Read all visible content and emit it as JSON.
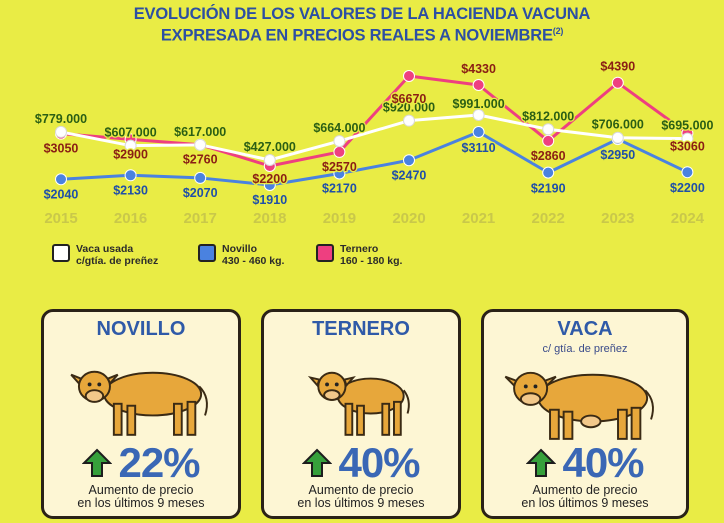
{
  "title_line1": "EVOLUCIÓN DE LOS VALORES DE LA HACIENDA VACUNA",
  "title_line2": "EXPRESADA EN PRECIOS REALES A NOVIEMBRE",
  "title_note": "(2)",
  "colors": {
    "background": "#e9ec45",
    "vaca": "#ffffff",
    "novillo": "#4a82e0",
    "ternero": "#ee3f80",
    "year_labels": "#c9c84a",
    "card_title": "#2f5aa8",
    "arrow": "#36a03b"
  },
  "chart_data": {
    "type": "line",
    "x": [
      "2015",
      "2016",
      "2017",
      "2018",
      "2019",
      "2020",
      "2021",
      "2022",
      "2023",
      "2024"
    ],
    "grid": false,
    "legend_position": "bottom-left",
    "series": [
      {
        "name": "Vaca usada c/gtía. de preñez",
        "values": [
          779000,
          607000,
          617000,
          427000,
          664000,
          920000,
          991000,
          812000,
          706000,
          695000
        ],
        "labels": [
          "$779.000",
          "$607.000",
          "$617.000",
          "$427.000",
          "$664.000",
          "$920.000",
          "$991.000",
          "$812.000",
          "$706.000",
          "$695.000"
        ]
      },
      {
        "name": "Novillo 430 - 460 kg.",
        "values": [
          2040,
          2130,
          2070,
          1910,
          2170,
          2470,
          3110,
          2190,
          2950,
          2200
        ],
        "labels": [
          "$2040",
          "$2130",
          "$2070",
          "$1910",
          "$2170",
          "$2470",
          "$3110",
          "$2190",
          "$2950",
          "$2200"
        ]
      },
      {
        "name": "Ternero 160 - 180 kg.",
        "values": [
          3050,
          2900,
          2760,
          2200,
          2570,
          6670,
          4330,
          2860,
          4390,
          3060
        ],
        "labels": [
          "$3050",
          "$2900",
          "$2760",
          "$2200",
          "$2570",
          "$6670",
          "$4330",
          "$2860",
          "$4390",
          "$3060"
        ]
      }
    ]
  },
  "legend": [
    {
      "line1": "Vaca usada",
      "line2": "c/gtía. de preñez"
    },
    {
      "line1": "Novillo",
      "line2": "430 - 460 kg."
    },
    {
      "line1": "Ternero",
      "line2": "160 - 180 kg."
    }
  ],
  "cards": [
    {
      "title": "NOVILLO",
      "subtitle": "",
      "percent": "22%",
      "note_line1": "Aumento de precio",
      "note_line2": "en los últimos 9 meses"
    },
    {
      "title": "TERNERO",
      "subtitle": "",
      "percent": "40%",
      "note_line1": "Aumento de precio",
      "note_line2": "en los últimos 9 meses"
    },
    {
      "title": "VACA",
      "subtitle": "c/ gtía. de preñez",
      "percent": "40%",
      "note_line1": "Aumento de precio",
      "note_line2": "en los últimos 9 meses"
    }
  ]
}
